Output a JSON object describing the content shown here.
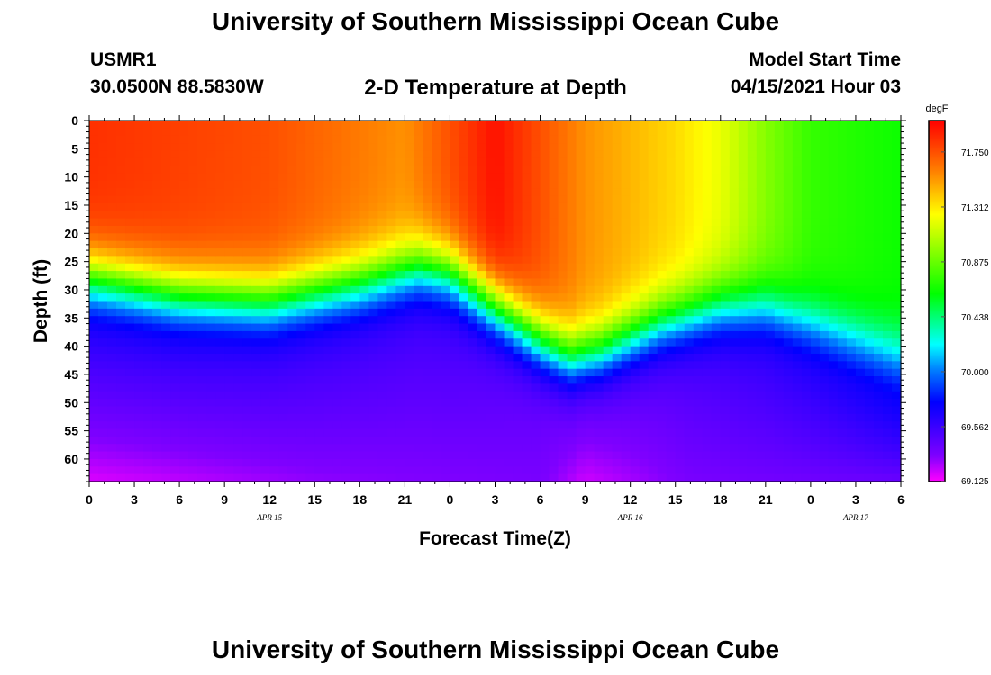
{
  "header": {
    "title": "University of Southern Mississippi Ocean Cube",
    "station_id": "USMR1",
    "station_coords": "30.0500N  88.5830W",
    "plot_title": "2-D Temperature at Depth",
    "model_start_label": "Model Start Time",
    "model_start_value": "04/15/2021 Hour 03"
  },
  "footer": {
    "title": "University of Southern Mississippi Ocean Cube"
  },
  "chart_data": {
    "type": "heatmap",
    "title": "2-D Temperature at Depth",
    "xlabel": "Forecast Time(Z)",
    "ylabel": "Depth (ft)",
    "x_hours_range": [
      0,
      54
    ],
    "x_ticks": [
      {
        "hour": 0,
        "label": "0"
      },
      {
        "hour": 3,
        "label": "3"
      },
      {
        "hour": 6,
        "label": "6"
      },
      {
        "hour": 9,
        "label": "9"
      },
      {
        "hour": 12,
        "label": "12"
      },
      {
        "hour": 15,
        "label": "15"
      },
      {
        "hour": 18,
        "label": "18"
      },
      {
        "hour": 21,
        "label": "21"
      },
      {
        "hour": 24,
        "label": "0"
      },
      {
        "hour": 27,
        "label": "3"
      },
      {
        "hour": 30,
        "label": "6"
      },
      {
        "hour": 33,
        "label": "9"
      },
      {
        "hour": 36,
        "label": "12"
      },
      {
        "hour": 39,
        "label": "15"
      },
      {
        "hour": 42,
        "label": "18"
      },
      {
        "hour": 45,
        "label": "21"
      },
      {
        "hour": 48,
        "label": "0"
      },
      {
        "hour": 51,
        "label": "3"
      },
      {
        "hour": 54,
        "label": "6"
      }
    ],
    "date_labels": [
      {
        "hour": 12,
        "label": "APR 15"
      },
      {
        "hour": 36,
        "label": "APR 16"
      },
      {
        "hour": 51,
        "label": "APR 17"
      }
    ],
    "y_range_ft": [
      0,
      64
    ],
    "y_ticks": [
      0,
      5,
      10,
      15,
      20,
      25,
      30,
      35,
      40,
      45,
      50,
      55,
      60
    ],
    "colorbar": {
      "unit": "degF",
      "range": [
        69.125,
        72.0
      ],
      "ticks": [
        "71.750",
        "71.312",
        "70.875",
        "70.438",
        "70.000",
        "69.562",
        "69.125"
      ]
    },
    "grid": false,
    "estimated_field": {
      "description": "Warm mixed layer over cold deep layer; thermocline depth varies with time",
      "thermocline_depth_ft": [
        {
          "hour": 0,
          "depth": 28
        },
        {
          "hour": 6,
          "depth": 31
        },
        {
          "hour": 12,
          "depth": 32
        },
        {
          "hour": 18,
          "depth": 29
        },
        {
          "hour": 22,
          "depth": 26
        },
        {
          "hour": 24,
          "depth": 27
        },
        {
          "hour": 27,
          "depth": 33
        },
        {
          "hour": 30,
          "depth": 39
        },
        {
          "hour": 32,
          "depth": 42
        },
        {
          "hour": 34,
          "depth": 41
        },
        {
          "hour": 38,
          "depth": 36
        },
        {
          "hour": 42,
          "depth": 33
        },
        {
          "hour": 45,
          "depth": 33
        },
        {
          "hour": 48,
          "depth": 36
        },
        {
          "hour": 51,
          "depth": 39
        },
        {
          "hour": 54,
          "depth": 42
        }
      ],
      "surface_temp_degF": [
        {
          "hour": 0,
          "temp": 71.85
        },
        {
          "hour": 12,
          "temp": 71.75
        },
        {
          "hour": 21,
          "temp": 71.55
        },
        {
          "hour": 27,
          "temp": 71.95
        },
        {
          "hour": 33,
          "temp": 71.55
        },
        {
          "hour": 39,
          "temp": 71.35
        },
        {
          "hour": 42,
          "temp": 71.2
        },
        {
          "hour": 45,
          "temp": 70.95
        },
        {
          "hour": 48,
          "temp": 70.75
        },
        {
          "hour": 54,
          "temp": 70.65
        }
      ],
      "deep_temp_degF": [
        {
          "hour": 0,
          "temp": 69.55
        },
        {
          "hour": 24,
          "temp": 69.5
        },
        {
          "hour": 33,
          "temp": 69.35
        },
        {
          "hour": 42,
          "temp": 69.5
        },
        {
          "hour": 54,
          "temp": 69.65
        }
      ],
      "bottom_temp_degF": [
        {
          "hour": 0,
          "temp": 69.18
        },
        {
          "hour": 15,
          "temp": 69.3
        },
        {
          "hour": 30,
          "temp": 69.35
        },
        {
          "hour": 33,
          "temp": 69.2
        },
        {
          "hour": 40,
          "temp": 69.35
        },
        {
          "hour": 54,
          "temp": 69.4
        }
      ]
    }
  }
}
